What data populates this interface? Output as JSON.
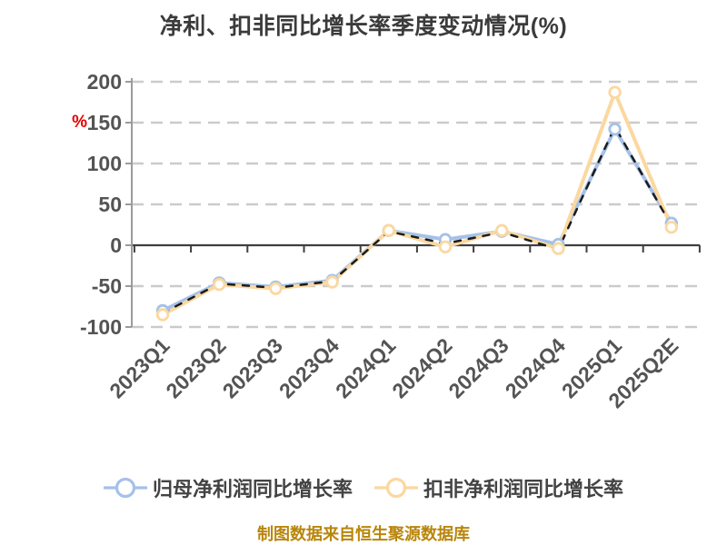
{
  "title": "净利、扣非同比增长率季度变动情况(%)",
  "footer": {
    "text": "制图数据来自恒生聚源数据库",
    "color": "#b8860b"
  },
  "legend": [
    {
      "label": "归母净利润同比增长率",
      "color": "#a5c1e8"
    },
    {
      "label": "扣非净利润同比增长率",
      "color": "#fbd8a0"
    }
  ],
  "y_axis": {
    "unit_label": "%",
    "unit_color": "#e60000",
    "tick_labels": [
      "200",
      "150",
      "100",
      "50",
      "0",
      "-50",
      "-100"
    ],
    "tick_values": [
      200,
      150,
      100,
      50,
      0,
      -50,
      -100
    ]
  },
  "chart_data": {
    "type": "line",
    "title": "净利、扣非同比增长率季度变动情况(%)",
    "categories": [
      "2023Q1",
      "2023Q2",
      "2023Q3",
      "2023Q4",
      "2024Q1",
      "2024Q2",
      "2024Q3",
      "2024Q4",
      "2025Q1",
      "2025Q2E"
    ],
    "series": [
      {
        "name": "归母净利润同比增长率",
        "color": "#a5c1e8",
        "line_style": "solid",
        "marker": "white-circle",
        "values": [
          -80,
          -46,
          -51,
          -43,
          18,
          7,
          17,
          1,
          142,
          27
        ]
      },
      {
        "name": "扣非净利润同比增长率",
        "color": "#fbd8a0",
        "line_style": "solid",
        "marker": "white-circle",
        "values": [
          -85,
          -48,
          -53,
          -45,
          18,
          -2,
          18,
          -4,
          187,
          22
        ]
      },
      {
        "name": "(unlabeled dashed overlay)",
        "color": "#1b1b1b",
        "line_style": "dashed",
        "marker": "none",
        "values": [
          -83,
          -47,
          -52,
          -44,
          17,
          2,
          16,
          -5,
          145,
          24
        ]
      }
    ],
    "ylabel": "%",
    "ylim": [
      -100,
      200
    ],
    "ytick_step": 50,
    "grid": "horizontal-dashed",
    "zero_line": "solid-dark",
    "legend_position": "bottom",
    "x_tick_label_rotation": -45
  },
  "style_colors": {
    "grid": "#cbcbcb",
    "zero_axis": "#3f3f3f",
    "y_axis_line": "#9b9b9b",
    "tick_label": "#545454",
    "title": "#3b3b3b"
  }
}
